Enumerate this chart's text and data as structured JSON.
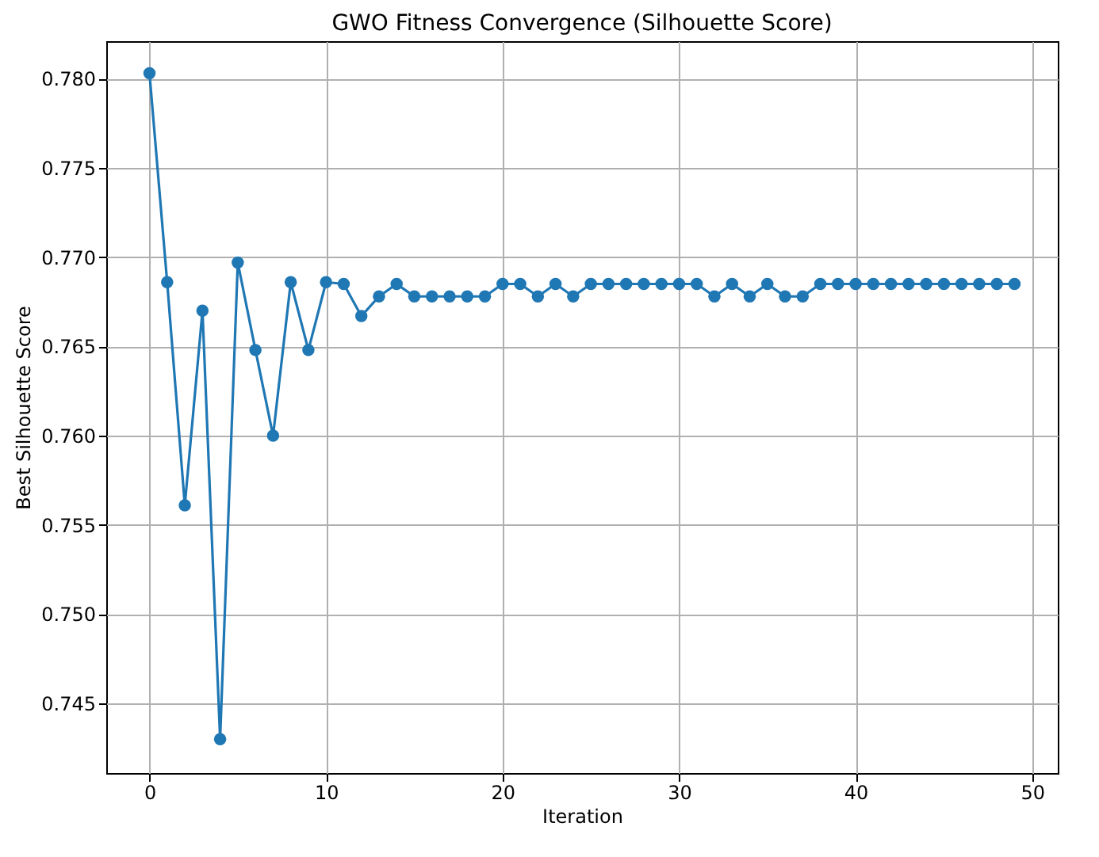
{
  "chart_data": {
    "type": "line",
    "title": "GWO Fitness Convergence (Silhouette Score)",
    "xlabel": "Iteration",
    "ylabel": "Best Silhouette Score",
    "x": [
      0,
      1,
      2,
      3,
      4,
      5,
      6,
      7,
      8,
      9,
      10,
      11,
      12,
      13,
      14,
      15,
      16,
      17,
      18,
      19,
      20,
      21,
      22,
      23,
      24,
      25,
      26,
      27,
      28,
      29,
      30,
      31,
      32,
      33,
      34,
      35,
      36,
      37,
      38,
      39,
      40,
      41,
      42,
      43,
      44,
      45,
      46,
      47,
      48,
      49
    ],
    "series": [
      {
        "color": "#1f77b4",
        "values": [
          0.7803,
          0.7686,
          0.7561,
          0.767,
          0.743,
          0.7697,
          0.7648,
          0.76,
          0.7686,
          0.7648,
          0.7686,
          0.7685,
          0.7667,
          0.7678,
          0.7685,
          0.7678,
          0.7678,
          0.7678,
          0.7678,
          0.7678,
          0.7685,
          0.7685,
          0.7678,
          0.7685,
          0.7678,
          0.7685,
          0.7685,
          0.7685,
          0.7685,
          0.7685,
          0.7685,
          0.7685,
          0.7678,
          0.7685,
          0.7678,
          0.7685,
          0.7678,
          0.7678,
          0.7685,
          0.7685,
          0.7685,
          0.7685,
          0.7685,
          0.7685,
          0.7685,
          0.7685,
          0.7685,
          0.7685,
          0.7685,
          0.7685
        ]
      }
    ],
    "xlim": [
      -2.45,
      51.45
    ],
    "xticks": [
      0,
      10,
      20,
      30,
      40,
      50
    ],
    "ylim": [
      0.7411,
      0.7821
    ],
    "yticks": [
      0.745,
      {
        "value": 0.75,
        "label": "0.750"
      },
      0.755,
      {
        "value": 0.76,
        "label": "0.760"
      },
      0.765,
      {
        "value": 0.77,
        "label": "0.770"
      },
      0.775,
      {
        "value": 0.78,
        "label": "0.780"
      }
    ],
    "grid": true,
    "marker": "circle",
    "line_style": "solid"
  }
}
